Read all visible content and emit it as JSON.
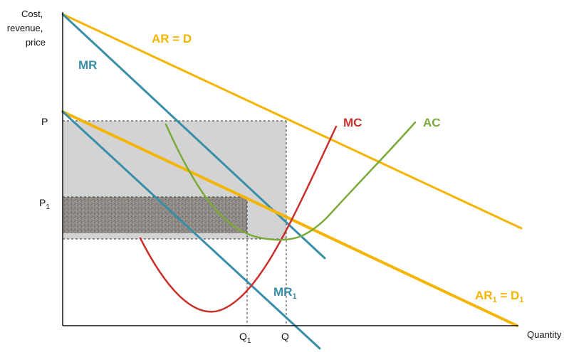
{
  "axes": {
    "y_title_lines": [
      "Cost,",
      "revenue,",
      "price"
    ],
    "x_title": "Quantity"
  },
  "ticks": {
    "y_p": "P",
    "y_p1_base": "P",
    "y_p1_sub": "1",
    "x_q1_base": "Q",
    "x_q1_sub": "1",
    "x_q": "Q"
  },
  "curves": {
    "ar": {
      "label": "AR = D",
      "color": "#f5b400"
    },
    "mr": {
      "label": "MR",
      "color": "#3a8fa8"
    },
    "mc": {
      "label": "MC",
      "color": "#c9302c"
    },
    "ac": {
      "label": "AC",
      "color": "#7aab3a"
    },
    "mr1": {
      "label_base": "MR",
      "label_sub": "1",
      "color": "#3a8fa8"
    },
    "ar1": {
      "label_a": "AR",
      "label_a_sub": "1",
      "label_mid": " = D",
      "label_b_sub": "1",
      "color": "#f5b400"
    }
  },
  "areas": {
    "supernormal_profit_color": "#d3d3d3",
    "new_profit_color": "#8f8a85"
  }
}
